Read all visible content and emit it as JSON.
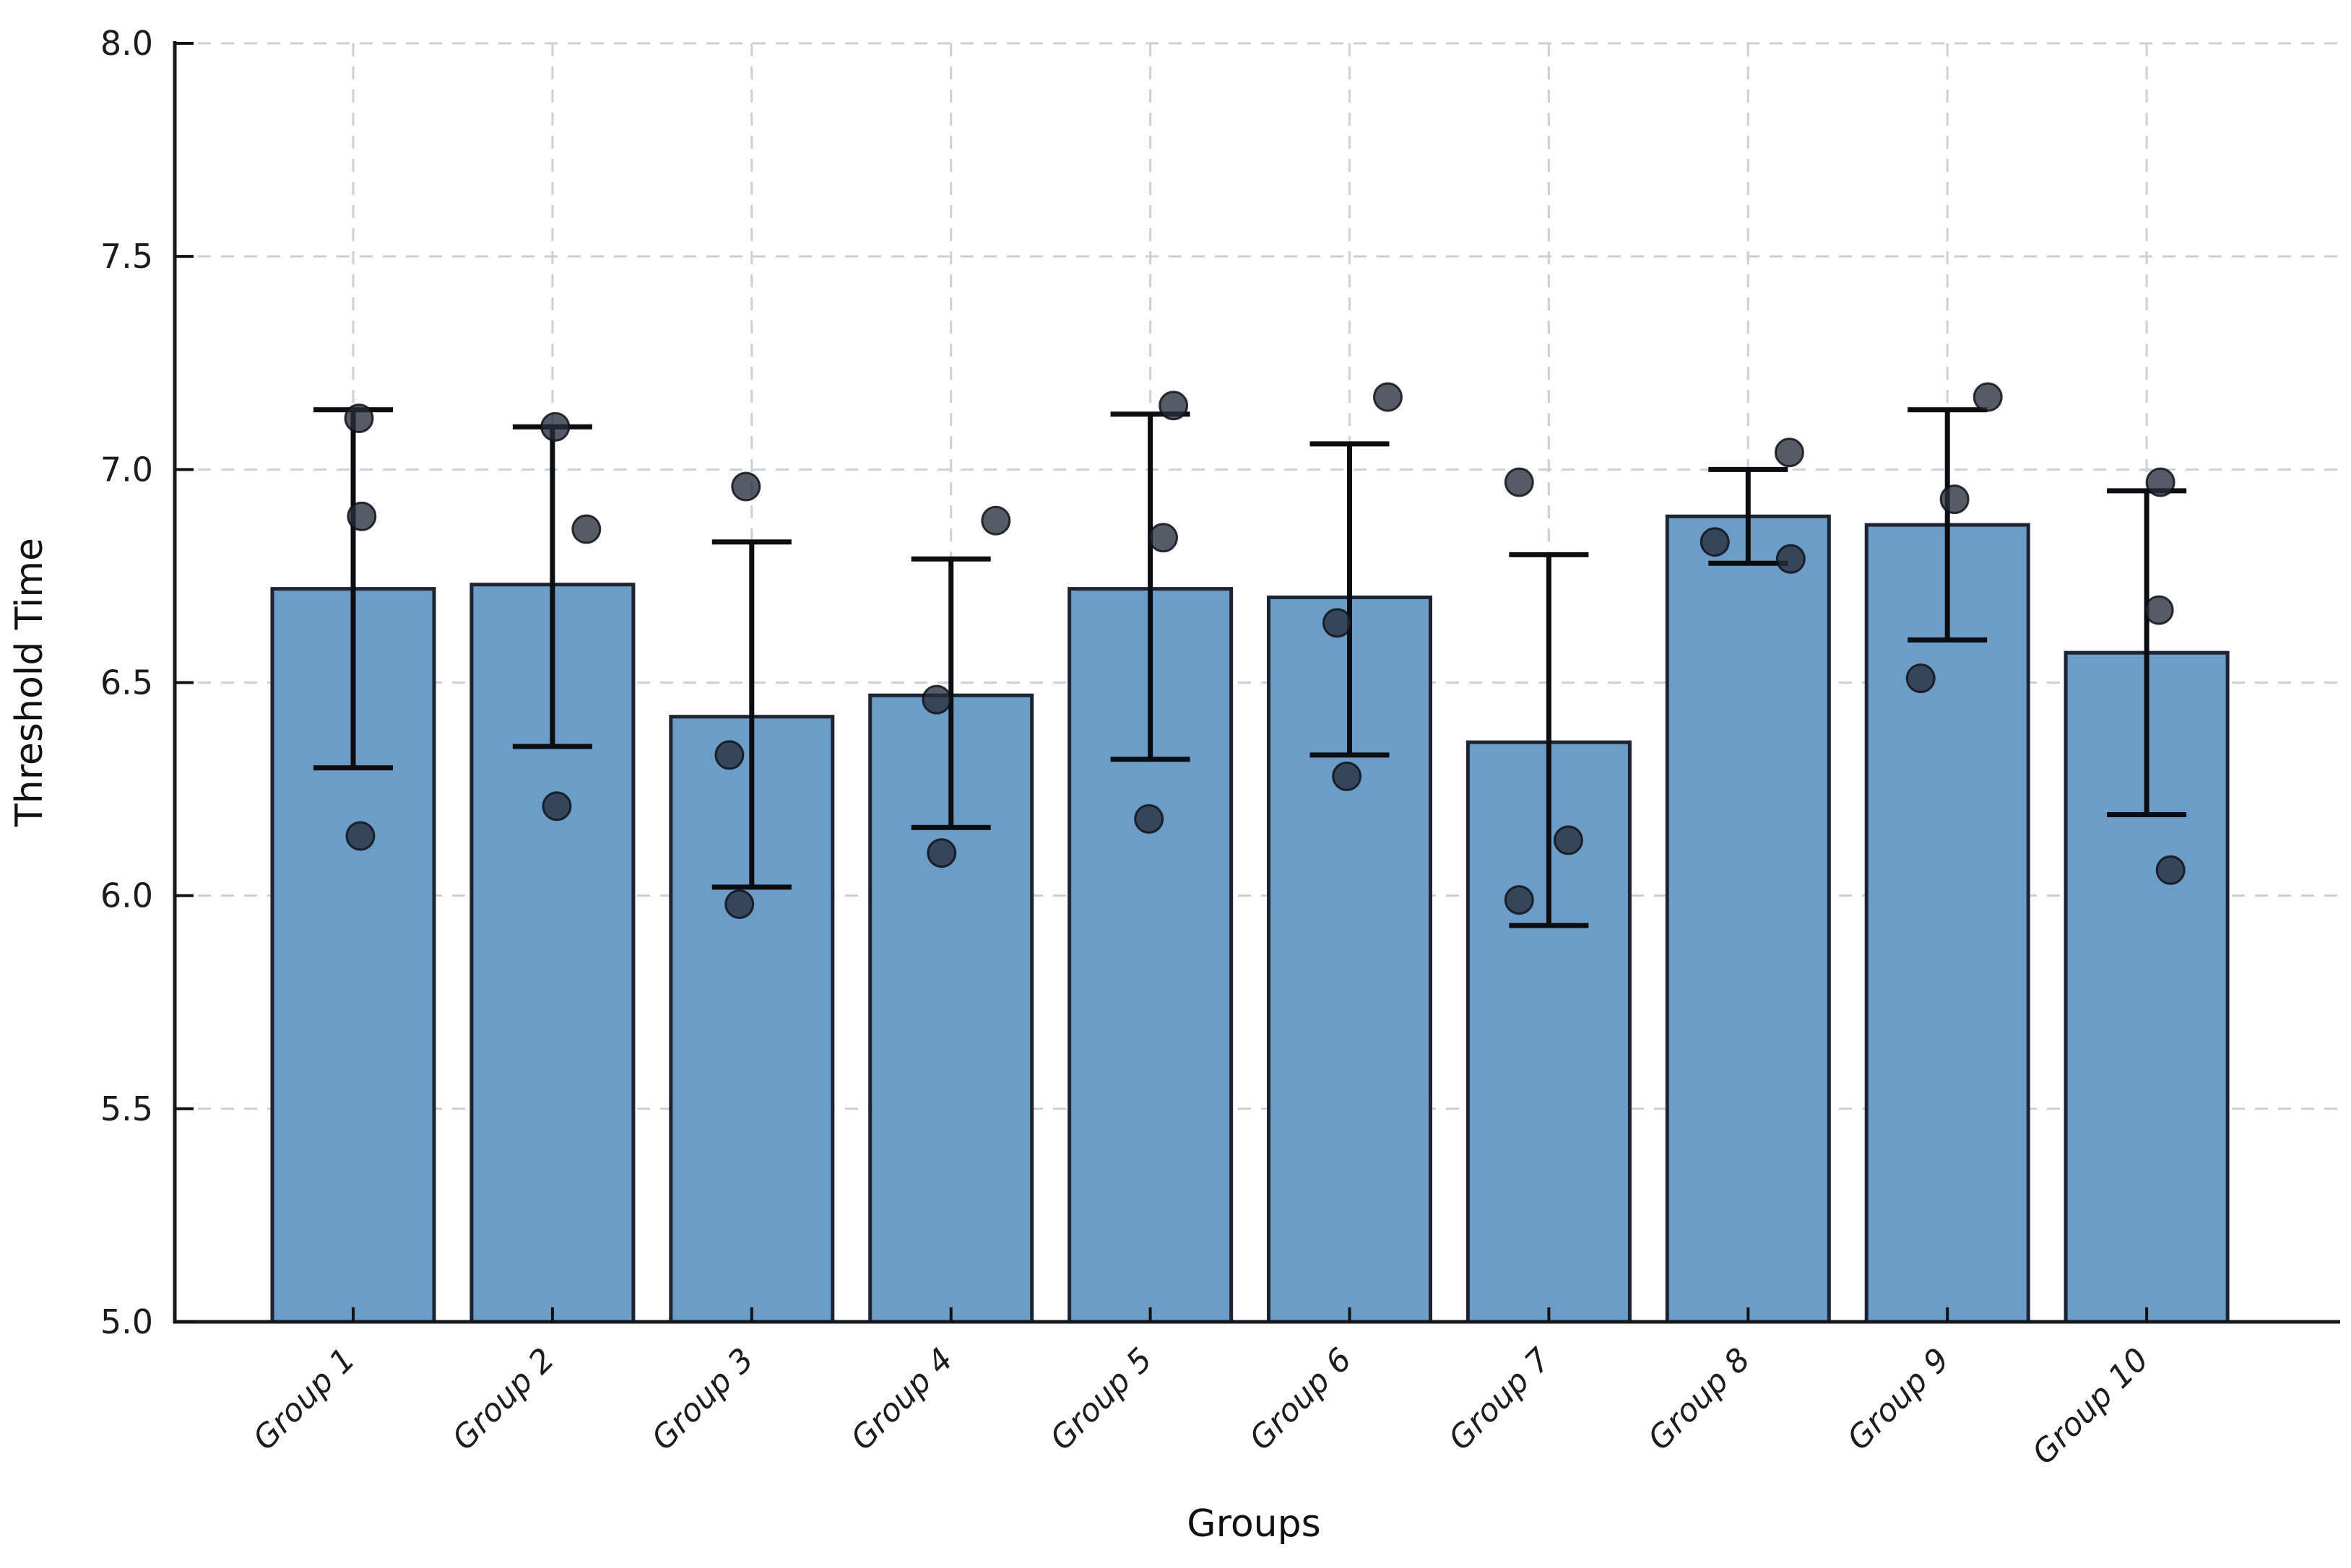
{
  "chart_data": {
    "type": "bar",
    "title": "",
    "xlabel": "Groups",
    "ylabel": "Threshold Time",
    "ylim": [
      5.0,
      8.0
    ],
    "yticks": [
      5.0,
      5.5,
      6.0,
      6.5,
      7.0,
      7.5,
      8.0
    ],
    "ytick_labels": [
      "5.0",
      "5.5",
      "6.0",
      "6.5",
      "7.0",
      "7.5",
      "8.0"
    ],
    "grid": "dashed, horizontal and vertical, light gray",
    "legend": "none",
    "categories": [
      "Group 1",
      "Group 2",
      "Group 3",
      "Group 4",
      "Group 5",
      "Group 6",
      "Group 7",
      "Group 8",
      "Group 9",
      "Group 10"
    ],
    "values": [
      6.72,
      6.73,
      6.42,
      6.47,
      6.72,
      6.7,
      6.36,
      6.89,
      6.87,
      6.57
    ],
    "error_low": [
      6.3,
      6.35,
      6.02,
      6.16,
      6.32,
      6.33,
      5.93,
      6.78,
      6.6,
      6.19
    ],
    "error_high": [
      7.14,
      7.1,
      6.83,
      6.79,
      7.13,
      7.06,
      6.8,
      7.0,
      7.14,
      6.95
    ],
    "points": [
      [
        {
          "v": 7.12,
          "j": 0.029
        },
        {
          "v": 6.89,
          "j": 0.043
        },
        {
          "v": 6.14,
          "j": 0.036
        }
      ],
      [
        {
          "v": 7.1,
          "j": 0.014
        },
        {
          "v": 6.86,
          "j": 0.17
        },
        {
          "v": 6.21,
          "j": 0.022
        }
      ],
      [
        {
          "v": 6.96,
          "j": -0.029
        },
        {
          "v": 6.33,
          "j": -0.112
        },
        {
          "v": 5.98,
          "j": -0.062
        }
      ],
      [
        {
          "v": 6.88,
          "j": 0.225
        },
        {
          "v": 6.46,
          "j": -0.072
        },
        {
          "v": 6.1,
          "j": -0.047
        }
      ],
      [
        {
          "v": 7.15,
          "j": 0.116
        },
        {
          "v": 6.84,
          "j": 0.065
        },
        {
          "v": 6.18,
          "j": -0.007
        }
      ],
      [
        {
          "v": 7.17,
          "j": 0.192
        },
        {
          "v": 6.64,
          "j": -0.062
        },
        {
          "v": 6.28,
          "j": -0.014
        }
      ],
      [
        {
          "v": 6.97,
          "j": -0.149
        },
        {
          "v": 6.13,
          "j": 0.098
        },
        {
          "v": 5.99,
          "j": -0.149
        }
      ],
      [
        {
          "v": 7.04,
          "j": 0.207
        },
        {
          "v": 6.83,
          "j": -0.167
        },
        {
          "v": 6.79,
          "j": 0.214
        }
      ],
      [
        {
          "v": 7.17,
          "j": 0.203
        },
        {
          "v": 6.93,
          "j": 0.036
        },
        {
          "v": 6.51,
          "j": -0.134
        }
      ],
      [
        {
          "v": 6.97,
          "j": 0.069
        },
        {
          "v": 6.67,
          "j": 0.062
        },
        {
          "v": 6.06,
          "j": 0.12
        }
      ]
    ],
    "colors": {
      "bar_fill": "#6C9DC8",
      "bar_edge": "#1b2430",
      "error_bar": "#0b0d10",
      "point_fill": "rgba(38,45,58,0.78)",
      "point_edge": "rgba(15,18,24,0.85)",
      "grid": "#ccd1d6",
      "spine": "#15181c",
      "tick": "#111111",
      "text": "#1c1c1c"
    }
  }
}
